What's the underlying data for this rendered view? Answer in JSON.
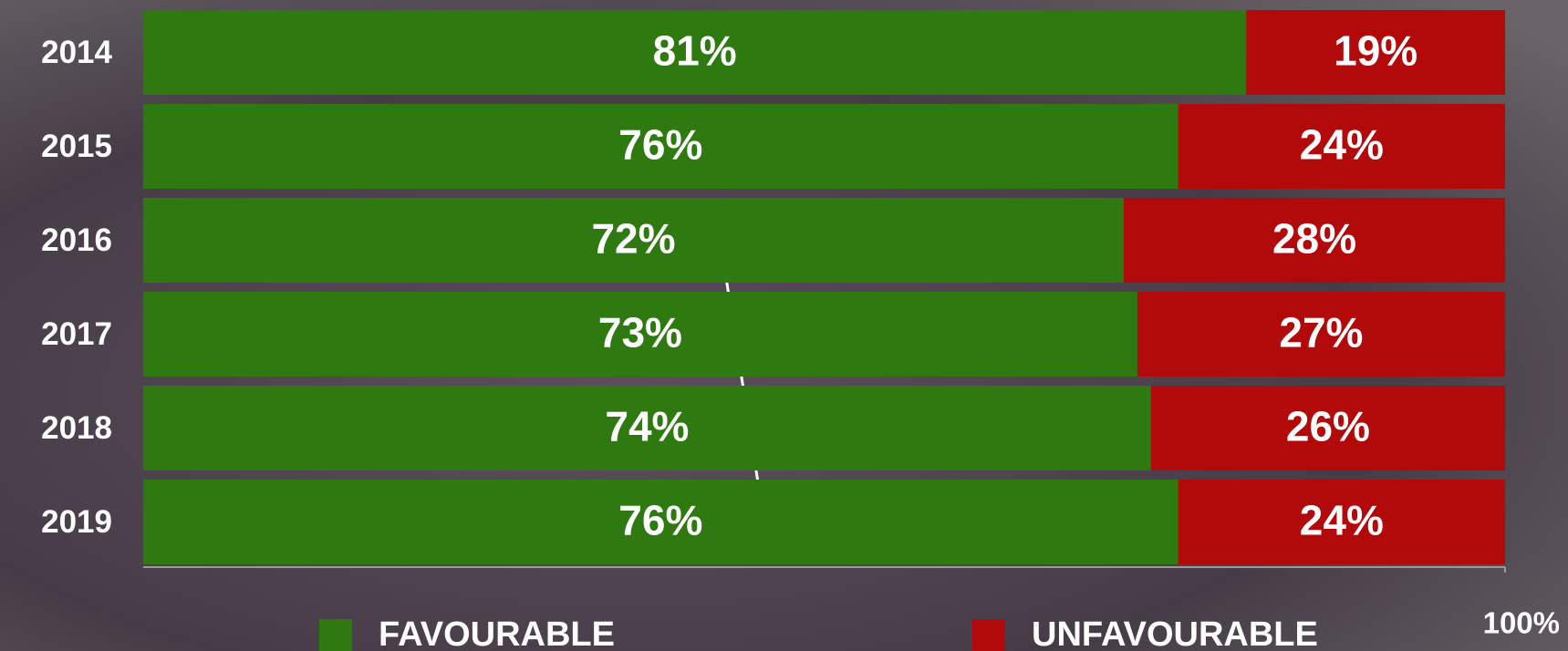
{
  "chart_data": {
    "type": "stacked-bar-horizontal",
    "categories": [
      "2014",
      "2015",
      "2016",
      "2017",
      "2018",
      "2019"
    ],
    "series": [
      {
        "name": "FAVOURABLE",
        "color": "#2f7a10",
        "values": [
          81,
          76,
          72,
          73,
          74,
          76
        ],
        "value_labels": [
          "81%",
          "76%",
          "72%",
          "73%",
          "74%",
          "76%"
        ]
      },
      {
        "name": "UNFAVOURABLE",
        "color": "#b20a0a",
        "values": [
          19,
          24,
          28,
          27,
          26,
          24
        ],
        "value_labels": [
          "19%",
          "24%",
          "28%",
          "27%",
          "26%",
          "24%"
        ]
      }
    ],
    "xlim": [
      0,
      100
    ],
    "xticks": [
      {
        "value": 100,
        "label": "100%"
      }
    ]
  }
}
